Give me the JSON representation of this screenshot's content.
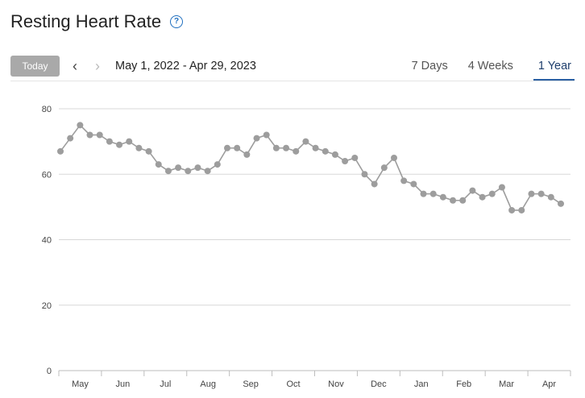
{
  "header": {
    "title": "Resting Heart Rate",
    "help_icon": "question-circle-icon"
  },
  "toolbar": {
    "today_label": "Today",
    "prev_icon": "chevron-left-icon",
    "next_icon": "chevron-right-icon",
    "date_range": "May 1, 2022 - Apr 29, 2023",
    "tabs": [
      {
        "label": "7 Days",
        "active": false
      },
      {
        "label": "4 Weeks",
        "active": false
      },
      {
        "label": "1 Year",
        "active": true
      }
    ]
  },
  "colors": {
    "accent": "#2a5fa3",
    "series": "#9d9d9d",
    "button": "#a9a9a9"
  },
  "chart_data": {
    "type": "line",
    "title": "",
    "xlabel": "",
    "ylabel": "",
    "ylim": [
      0,
      80
    ],
    "yticks": [
      0,
      20,
      40,
      60,
      80
    ],
    "grid": true,
    "months": [
      "May",
      "Jun",
      "Jul",
      "Aug",
      "Sep",
      "Oct",
      "Nov",
      "Dec",
      "Jan",
      "Feb",
      "Mar",
      "Apr"
    ],
    "series": [
      {
        "values": [
          67,
          71,
          75,
          72,
          72,
          70,
          69,
          70,
          68,
          67,
          63,
          61,
          62,
          61,
          62,
          61,
          63,
          68,
          68,
          66,
          71,
          72,
          68,
          68,
          67,
          70,
          68,
          67,
          66,
          64,
          65,
          60,
          57,
          62,
          65,
          58,
          57,
          54,
          54,
          53,
          52,
          52,
          55,
          53,
          54,
          56,
          49,
          49,
          54,
          54,
          53,
          51
        ]
      }
    ]
  }
}
